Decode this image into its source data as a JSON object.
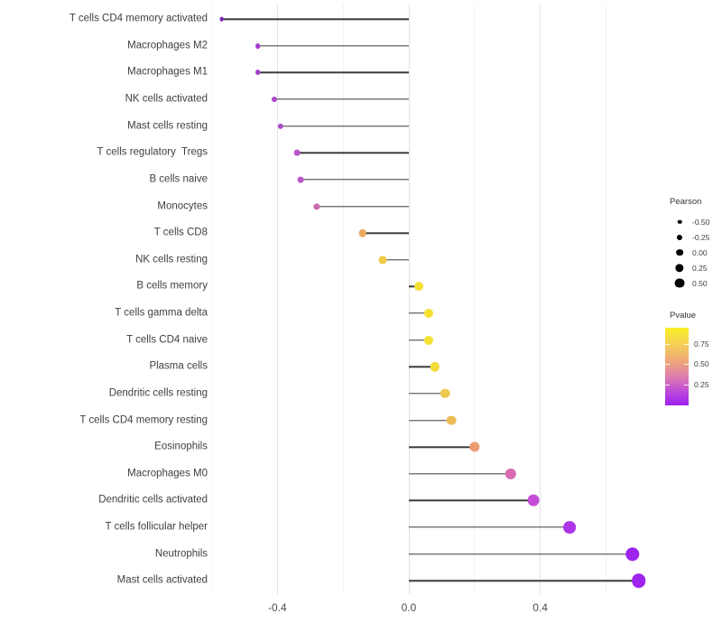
{
  "figure": {
    "background": "#ffffff"
  },
  "chart_data": {
    "type": "lollipop",
    "orientation": "horizontal",
    "title": "",
    "xlabel": "",
    "ylabel": "",
    "xlim": [
      -0.62,
      0.72
    ],
    "grid": "vertical-only",
    "x_axis": {
      "major_ticks": [
        -0.4,
        0.0,
        0.4
      ],
      "major_tick_labels": [
        "-0.4",
        "0.0",
        "0.4"
      ],
      "minor_ticks": [
        -0.6,
        -0.2,
        0.2,
        0.6
      ]
    },
    "stem_color": "#3b3b3b",
    "points": [
      {
        "label": "T cells CD4 memory activated",
        "pearson": -0.57,
        "color": "#7E22B8"
      },
      {
        "label": "Macrophages M2",
        "pearson": -0.46,
        "color": "#A23BCB"
      },
      {
        "label": "Macrophages M1",
        "pearson": -0.46,
        "color": "#A53ECB"
      },
      {
        "label": "NK cells activated",
        "pearson": -0.41,
        "color": "#A946CE"
      },
      {
        "label": "Mast cells resting",
        "pearson": -0.39,
        "color": "#AC4ACD"
      },
      {
        "label": "T cells regulatory  Tregs",
        "pearson": -0.34,
        "color": "#B654C9"
      },
      {
        "label": "B cells naive",
        "pearson": -0.33,
        "color": "#B957C7"
      },
      {
        "label": "Monocytes",
        "pearson": -0.28,
        "color": "#C869AB"
      },
      {
        "label": "T cells CD8",
        "pearson": -0.14,
        "color": "#E9A95E"
      },
      {
        "label": "NK cells resting",
        "pearson": -0.08,
        "color": "#EFCB47"
      },
      {
        "label": "B cells memory",
        "pearson": 0.03,
        "color": "#F4DF35"
      },
      {
        "label": "T cells gamma delta",
        "pearson": 0.06,
        "color": "#F4E132"
      },
      {
        "label": "T cells CD4 naive",
        "pearson": 0.06,
        "color": "#F4E132"
      },
      {
        "label": "Plasma cells",
        "pearson": 0.08,
        "color": "#F2DC3A"
      },
      {
        "label": "Dendritic cells resting",
        "pearson": 0.11,
        "color": "#EFC84E"
      },
      {
        "label": "T cells CD4 memory resting",
        "pearson": 0.13,
        "color": "#EDBC58"
      },
      {
        "label": "Eosinophils",
        "pearson": 0.2,
        "color": "#EC9B72"
      },
      {
        "label": "Macrophages M0",
        "pearson": 0.31,
        "color": "#D96BB2"
      },
      {
        "label": "Dendritic cells activated",
        "pearson": 0.38,
        "color": "#C44FD6"
      },
      {
        "label": "T cells follicular helper",
        "pearson": 0.49,
        "color": "#AC35E6"
      },
      {
        "label": "Neutrophils",
        "pearson": 0.68,
        "color": "#9E24EE"
      },
      {
        "label": "Mast cells activated",
        "pearson": 0.7,
        "color": "#9E24EE"
      }
    ],
    "legend_size": {
      "title": "Pearson",
      "breaks": [
        "-0.50",
        "-0.25",
        "0.00",
        "0.25",
        "0.50"
      ]
    },
    "legend_color": {
      "title": "Pvalue",
      "breaks": [
        "0.75",
        "0.50",
        "0.25"
      ],
      "gradient_top_color": "#F9F025",
      "gradient_bottom_color": "#9C20F2"
    }
  }
}
